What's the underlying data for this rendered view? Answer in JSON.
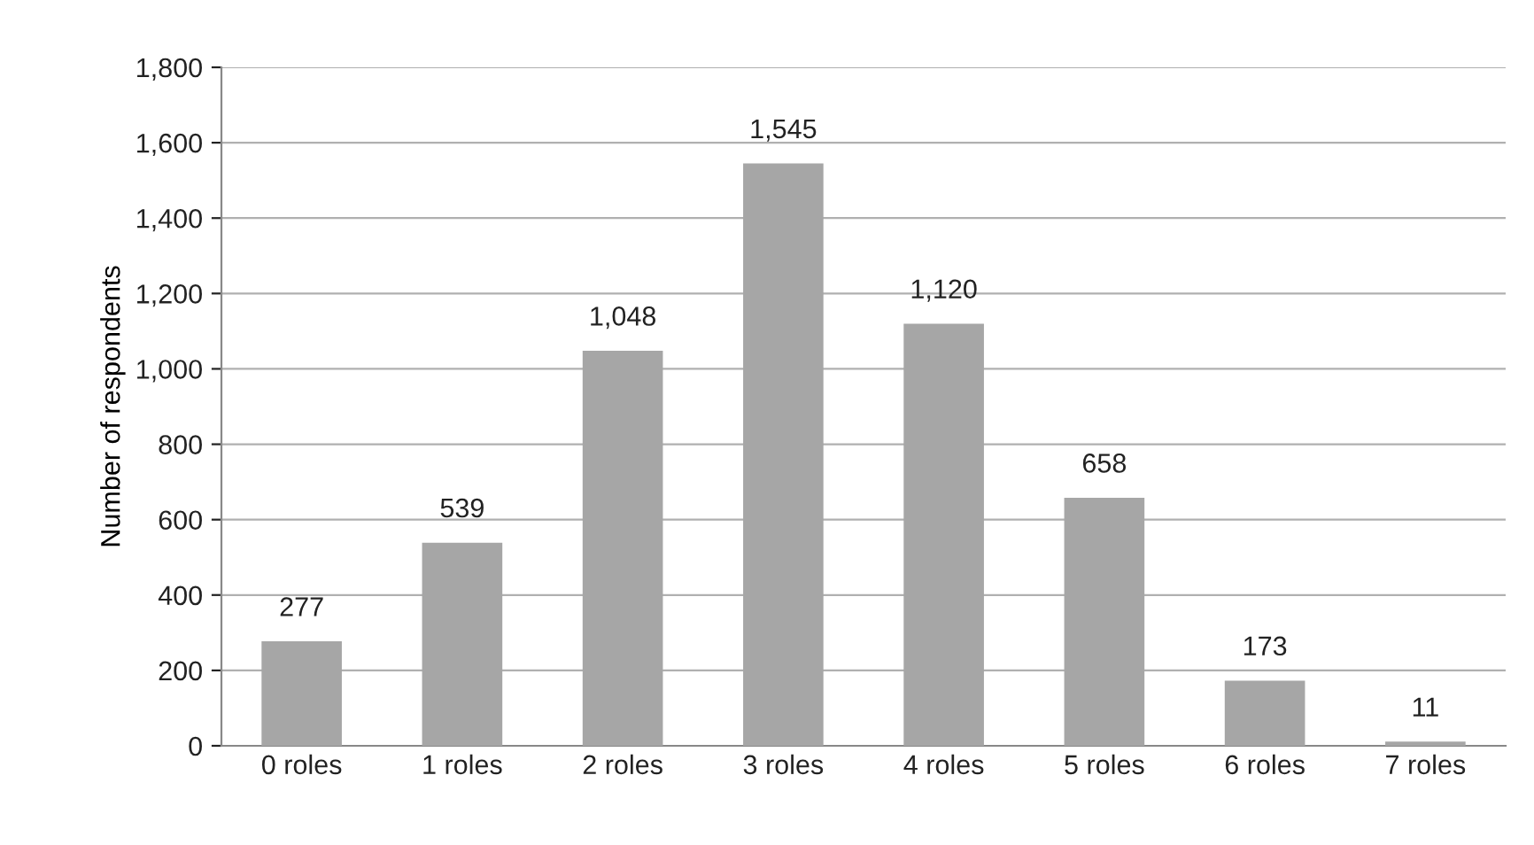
{
  "chart_data": {
    "type": "bar",
    "ylabel": "Number of respondents",
    "categories": [
      "0 roles",
      "1 roles",
      "2 roles",
      "3 roles",
      "4 roles",
      "5 roles",
      "6 roles",
      "7 roles"
    ],
    "values": [
      277,
      539,
      1048,
      1545,
      1120,
      658,
      173,
      11
    ],
    "value_labels": [
      "277",
      "539",
      "1,048",
      "1,545",
      "1,120",
      "658",
      "173",
      "11"
    ],
    "color": "#a6a6a6",
    "ylim": [
      0,
      1800
    ],
    "yticks": [
      0,
      200,
      400,
      600,
      800,
      {
        "value": 1000,
        "label": "1,000"
      },
      {
        "value": 1200,
        "label": "1,200"
      },
      {
        "value": 1400,
        "label": "1,400"
      },
      {
        "value": 1600,
        "label": "1,600"
      },
      {
        "value": 1800,
        "label": "1,800"
      }
    ],
    "grid": "y"
  }
}
